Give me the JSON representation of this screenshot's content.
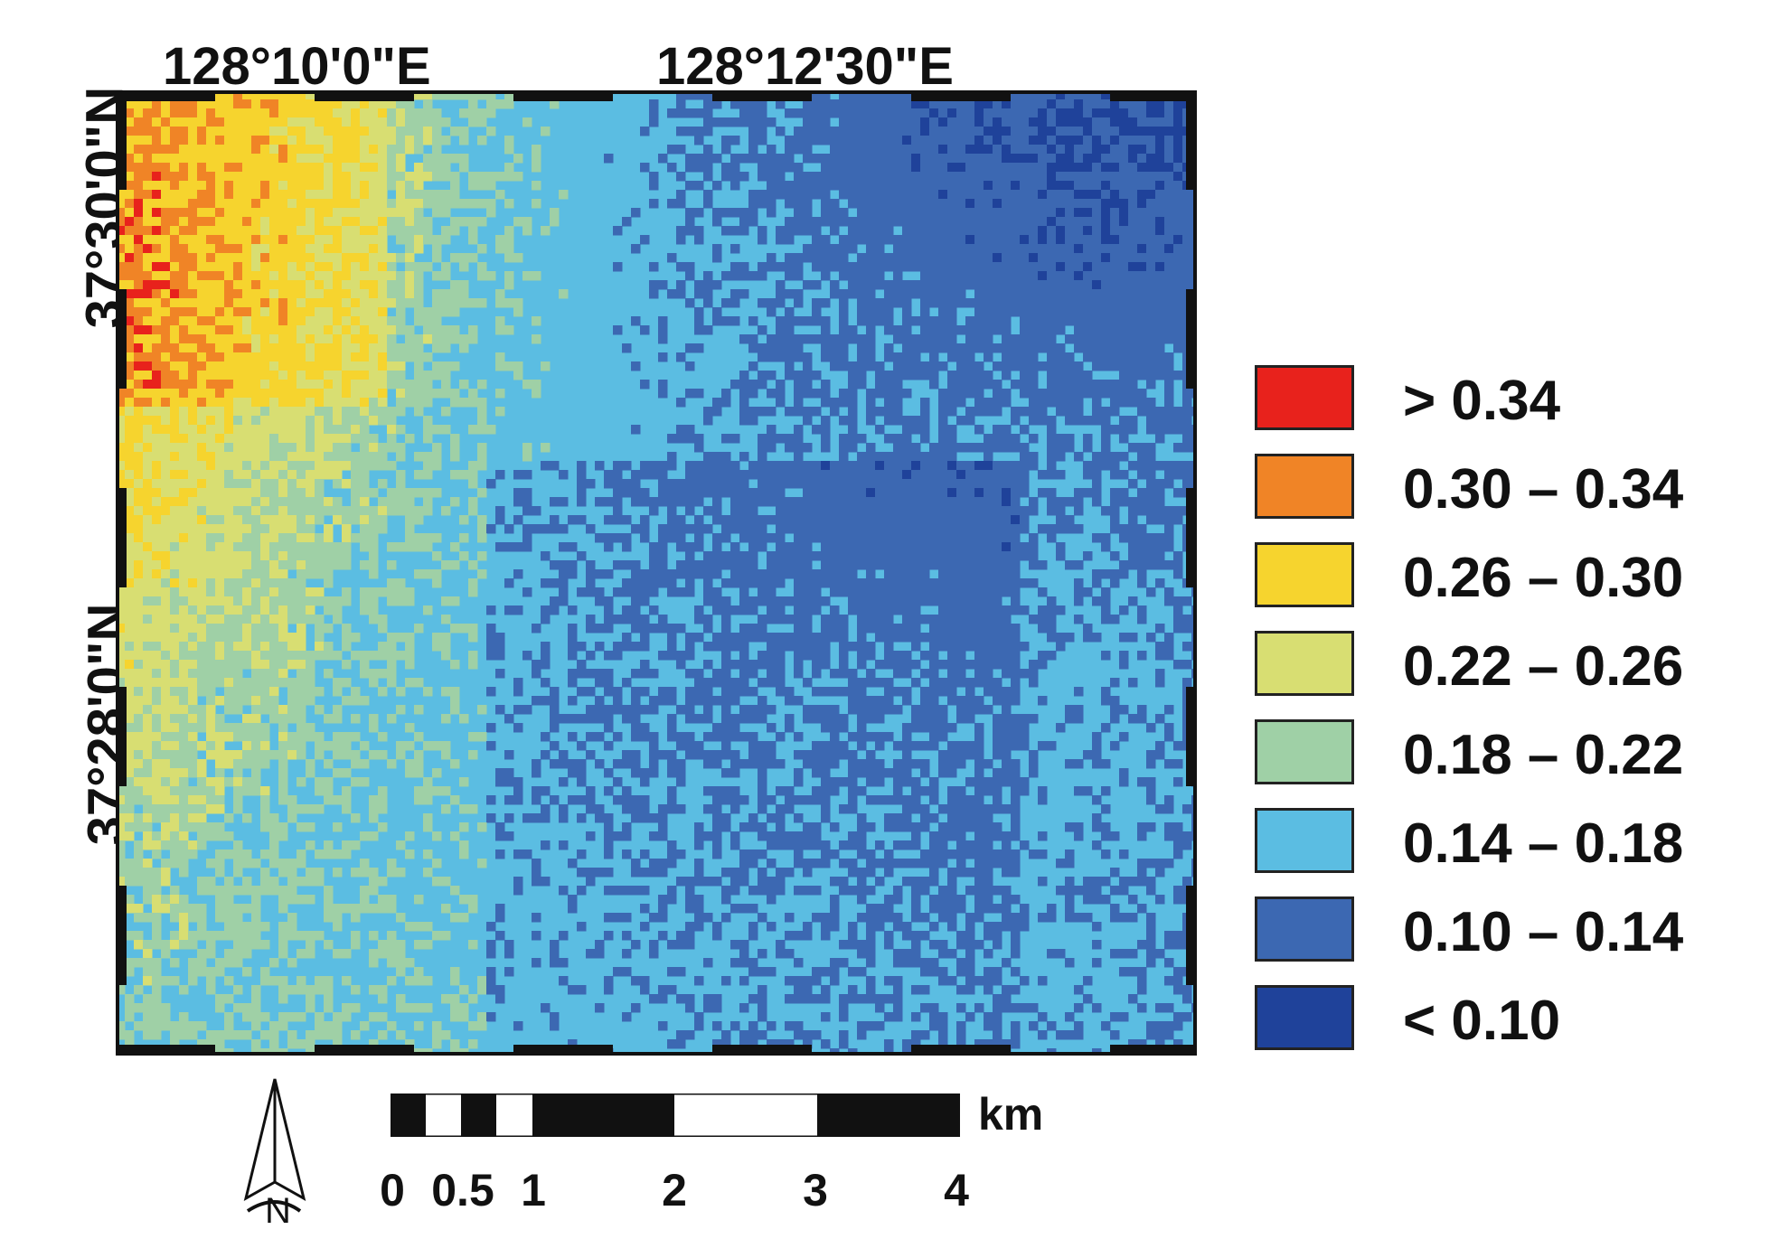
{
  "map": {
    "coords": {
      "top_left_lon": "128°10'0\"E",
      "top_right_lon": "128°12'30\"E",
      "upper_lat": "37°30'0\"N",
      "lower_lat": "37°28'0\"N"
    },
    "legend": [
      {
        "label": "> 0.34",
        "color": "#e8221c"
      },
      {
        "label": "0.30 – 0.34",
        "color": "#f08426"
      },
      {
        "label": "0.26 – 0.30",
        "color": "#f6d42e"
      },
      {
        "label": "0.22 – 0.26",
        "color": "#d8de72"
      },
      {
        "label": "0.18 – 0.22",
        "color": "#9fd0a6"
      },
      {
        "label": "0.14 – 0.18",
        "color": "#5bbde2"
      },
      {
        "label": "0.10 – 0.14",
        "color": "#3c68b2"
      },
      {
        "label": "< 0.10",
        "color": "#1f429a"
      }
    ],
    "scale_bar": {
      "labels": [
        "0",
        "0.5",
        "1",
        "2",
        "3",
        "4"
      ],
      "unit": "km"
    },
    "north_arrow": {
      "label": "N",
      "icon": "north-arrow-icon"
    }
  }
}
